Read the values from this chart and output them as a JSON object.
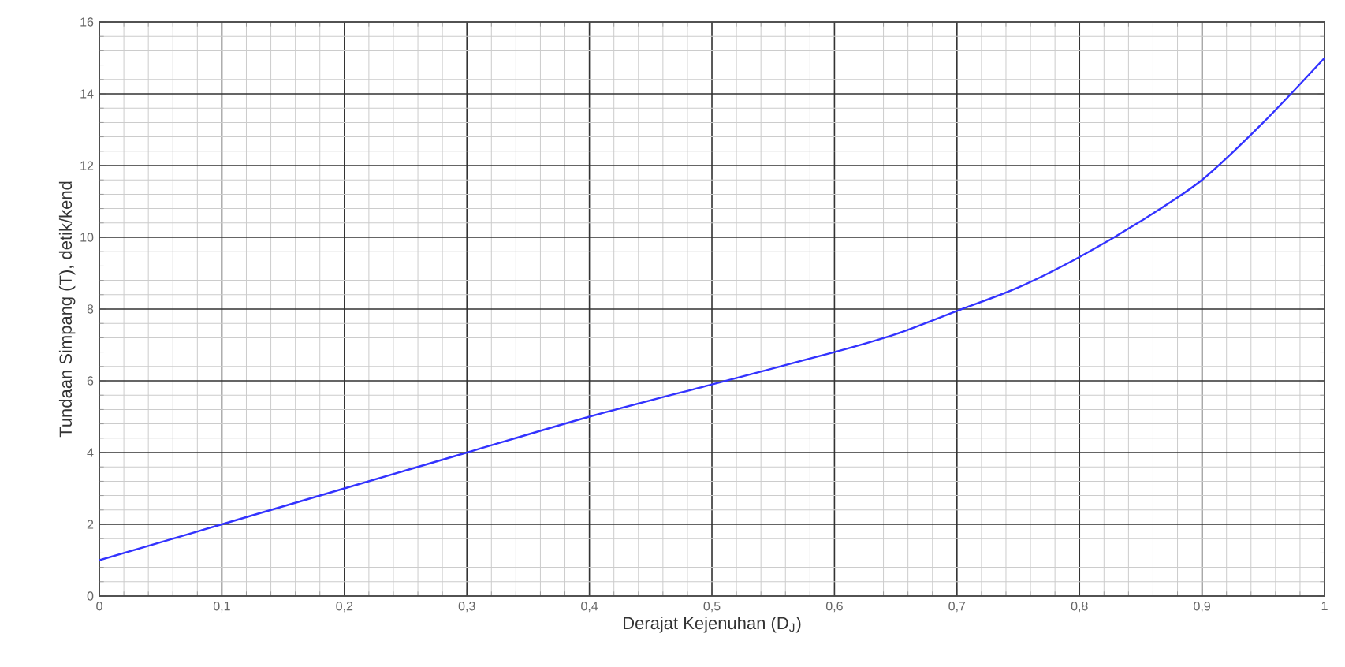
{
  "chart_data": {
    "type": "line",
    "xlabel": "Derajat Kejenuhan (D$_{J}$)",
    "ylabel": "Tundaan Simpang (T), detik/kend",
    "x": [
      0,
      0.1,
      0.2,
      0.3,
      0.4,
      0.5,
      0.6,
      0.65,
      0.7,
      0.75,
      0.8,
      0.85,
      0.9,
      0.95,
      1
    ],
    "series": [
      {
        "color": "#3333ff",
        "values": [
          1,
          2,
          3,
          4,
          5,
          5.9,
          6.8,
          7.3,
          7.95,
          8.6,
          9.45,
          10.45,
          11.6,
          13.2,
          15.0
        ]
      }
    ],
    "xlim": [
      0,
      1
    ],
    "xticks": [
      0,
      {
        "value": 0.1,
        "label": "0,1"
      },
      {
        "value": 0.2,
        "label": "0,2"
      },
      {
        "value": 0.3,
        "label": "0,3"
      },
      {
        "value": 0.4,
        "label": "0,4"
      },
      {
        "value": 0.5,
        "label": "0,5"
      },
      {
        "value": 0.6,
        "label": "0,6"
      },
      {
        "value": 0.7,
        "label": "0,7"
      },
      {
        "value": 0.8,
        "label": "0,8"
      },
      {
        "value": 0.9,
        "label": "0,9"
      },
      1
    ],
    "ylim": [
      0,
      16
    ],
    "yticks": [
      0,
      2,
      4,
      6,
      8,
      10,
      12,
      14,
      16
    ],
    "grid": true,
    "marker": "none",
    "line_style": "solid"
  }
}
